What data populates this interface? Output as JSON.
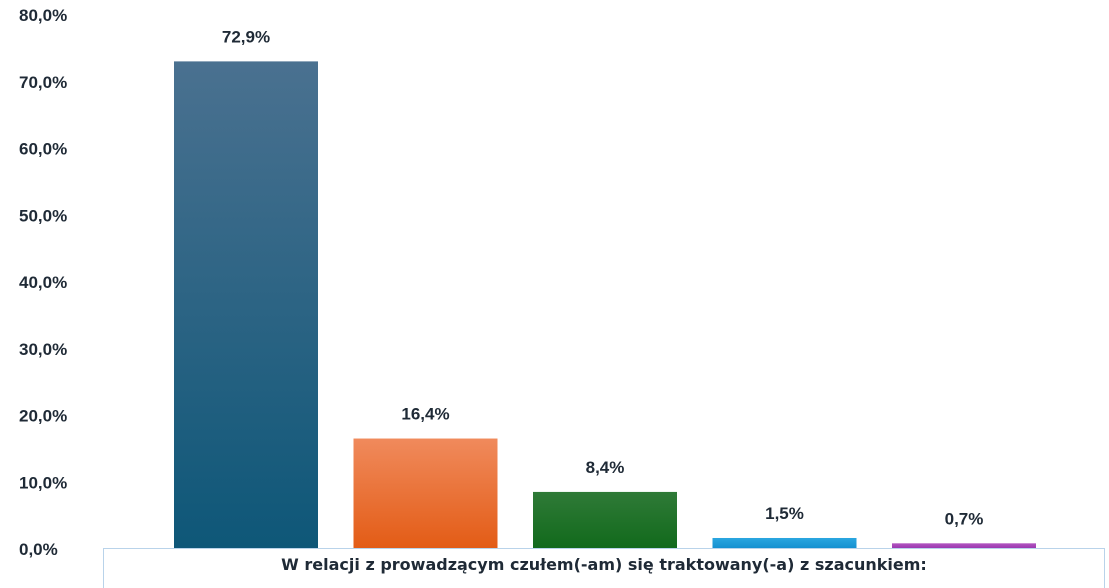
{
  "chart_data": {
    "type": "bar",
    "categories": [
      "",
      "",
      "",
      "",
      ""
    ],
    "values": [
      72.9,
      16.4,
      8.4,
      1.5,
      0.7
    ],
    "value_labels": [
      "72,9%",
      "16,4%",
      "8,4%",
      "1,5%",
      "0,7%"
    ],
    "colors": [
      [
        "#4a7190",
        "#0e5778"
      ],
      [
        "#f08a5c",
        "#e35c16"
      ],
      [
        "#2f7a37",
        "#126a1c"
      ],
      [
        "#2aa6e0",
        "#1490d0"
      ],
      [
        "#b155c0",
        "#9c38b0"
      ]
    ],
    "ylim": [
      0,
      80
    ],
    "yticks": [
      "0,0%",
      "10,0%",
      "20,0%",
      "30,0%",
      "40,0%",
      "50,0%",
      "60,0%",
      "70,0%",
      "80,0%"
    ],
    "xlabel": "W relacji z prowadzącym czułem(-am) się traktowany(-a) z szacunkiem:",
    "ylabel": "",
    "title": "",
    "grid": false,
    "legend": "none"
  }
}
